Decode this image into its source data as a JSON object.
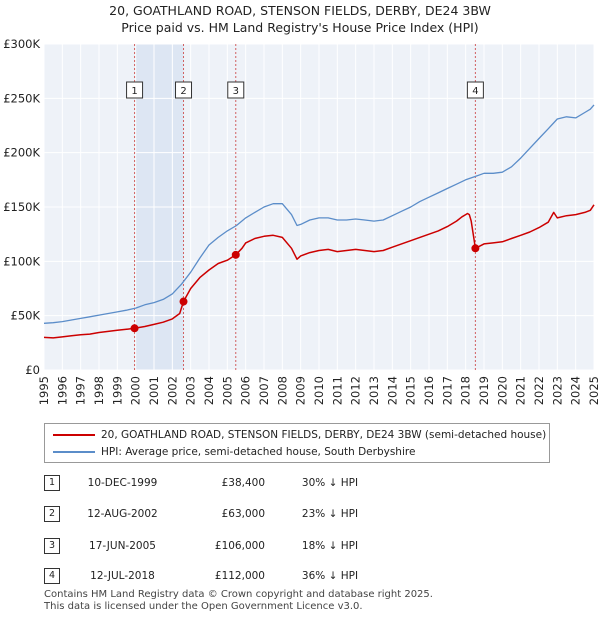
{
  "chart_data": {
    "type": "line",
    "title": "20, GOATHLAND ROAD, STENSON FIELDS, DERBY, DE24 3BW",
    "subtitle": "Price paid vs. HM Land Registry's House Price Index (HPI)",
    "xlabel": "",
    "ylabel": "",
    "xlim": [
      1995,
      2025
    ],
    "ylim": [
      0,
      300000
    ],
    "y_ticks": [
      0,
      50000,
      100000,
      150000,
      200000,
      250000,
      300000
    ],
    "y_tick_labels": [
      "£0",
      "£50K",
      "£100K",
      "£150K",
      "£200K",
      "£250K",
      "£300K"
    ],
    "x_ticks": [
      "1995",
      "1996",
      "1997",
      "1998",
      "1999",
      "2000",
      "2001",
      "2002",
      "2003",
      "2004",
      "2005",
      "2006",
      "2007",
      "2008",
      "2009",
      "2010",
      "2011",
      "2012",
      "2013",
      "2014",
      "2015",
      "2016",
      "2017",
      "2018",
      "2019",
      "2020",
      "2021",
      "2022",
      "2023",
      "2024",
      "2025"
    ],
    "grid": true,
    "series": [
      {
        "name": "20, GOATHLAND ROAD, STENSON FIELDS, DERBY, DE24 3BW (semi-detached house)",
        "color": "#cc0000",
        "x": [
          1995,
          1995.5,
          1996,
          1996.5,
          1997,
          1997.5,
          1998,
          1998.5,
          1999,
          1999.5,
          1999.94,
          2000.5,
          2001,
          2001.5,
          2002,
          2002.4,
          2002.61,
          2003,
          2003.5,
          2004,
          2004.5,
          2005,
          2005.46,
          2005.8,
          2006,
          2006.5,
          2007,
          2007.5,
          2008,
          2008.5,
          2008.8,
          2009,
          2009.5,
          2010,
          2010.5,
          2011,
          2011.5,
          2012,
          2012.5,
          2013,
          2013.5,
          2014,
          2014.5,
          2015,
          2015.5,
          2016,
          2016.5,
          2017,
          2017.5,
          2017.8,
          2018,
          2018.1,
          2018.2,
          2018.3,
          2018.53,
          2019,
          2019.5,
          2020,
          2020.5,
          2021,
          2021.5,
          2022,
          2022.5,
          2022.8,
          2023,
          2023.5,
          2024,
          2024.5,
          2024.8,
          2025
        ],
        "values": [
          30000,
          29500,
          30500,
          31500,
          32500,
          33000,
          34500,
          35500,
          36500,
          37500,
          38400,
          40000,
          42000,
          44000,
          47000,
          52000,
          63000,
          75000,
          85000,
          92000,
          98000,
          101000,
          106000,
          112000,
          117000,
          121000,
          123000,
          124000,
          122000,
          112000,
          102000,
          105000,
          108000,
          110000,
          111000,
          109000,
          110000,
          111000,
          110000,
          109000,
          110000,
          113000,
          116000,
          119000,
          122000,
          125000,
          128000,
          132000,
          137000,
          141000,
          143000,
          144000,
          143000,
          137000,
          112000,
          116000,
          117000,
          118000,
          121000,
          124000,
          127000,
          131000,
          136000,
          145000,
          140000,
          142000,
          143000,
          145000,
          147000,
          152000
        ]
      },
      {
        "name": "HPI: Average price, semi-detached house, South Derbyshire",
        "color": "#5b8dc9",
        "x": [
          1995,
          1995.5,
          1996,
          1996.5,
          1997,
          1997.5,
          1998,
          1998.5,
          1999,
          1999.5,
          2000,
          2000.5,
          2001,
          2001.5,
          2002,
          2002.5,
          2003,
          2003.5,
          2004,
          2004.5,
          2005,
          2005.5,
          2006,
          2006.5,
          2007,
          2007.5,
          2008,
          2008.5,
          2008.8,
          2009,
          2009.5,
          2010,
          2010.5,
          2011,
          2011.5,
          2012,
          2012.5,
          2013,
          2013.5,
          2014,
          2014.5,
          2015,
          2015.5,
          2016,
          2016.5,
          2017,
          2017.5,
          2018,
          2018.5,
          2019,
          2019.5,
          2020,
          2020.5,
          2021,
          2021.5,
          2022,
          2022.5,
          2023,
          2023.5,
          2024,
          2024.5,
          2024.8,
          2025
        ],
        "values": [
          43000,
          43500,
          44500,
          46000,
          47500,
          49000,
          50500,
          52000,
          53500,
          55000,
          57000,
          60000,
          62000,
          65000,
          70000,
          79000,
          90000,
          103000,
          115000,
          122000,
          128000,
          133000,
          140000,
          145000,
          150000,
          153000,
          153000,
          143000,
          133000,
          134000,
          138000,
          140000,
          140000,
          138000,
          138000,
          139000,
          138000,
          137000,
          138000,
          142000,
          146000,
          150000,
          155000,
          159000,
          163000,
          167000,
          171000,
          175000,
          178000,
          181000,
          181000,
          182000,
          187000,
          195000,
          204000,
          213000,
          222000,
          231000,
          233000,
          232000,
          237000,
          240000,
          244000
        ]
      }
    ],
    "sales": [
      {
        "label": "1",
        "year": 1999.94,
        "price": 38400
      },
      {
        "label": "2",
        "year": 2002.61,
        "price": 63000
      },
      {
        "label": "3",
        "year": 2005.46,
        "price": 106000
      },
      {
        "label": "4",
        "year": 2018.53,
        "price": 112000
      }
    ]
  },
  "title": {
    "line1": "20, GOATHLAND ROAD, STENSON FIELDS, DERBY, DE24 3BW",
    "line2": "Price paid vs. HM Land Registry's House Price Index (HPI)"
  },
  "legend": {
    "property_label": "20, GOATHLAND ROAD, STENSON FIELDS, DERBY, DE24 3BW (semi-detached house)",
    "property_color": "#cc0000",
    "hpi_label": "HPI: Average price, semi-detached house, South Derbyshire",
    "hpi_color": "#5b8dc9"
  },
  "transactions": [
    {
      "num": "1",
      "date": "10-DEC-1999",
      "price": "£38,400",
      "diff": "30% ↓ HPI"
    },
    {
      "num": "2",
      "date": "12-AUG-2002",
      "price": "£63,000",
      "diff": "23% ↓ HPI"
    },
    {
      "num": "3",
      "date": "17-JUN-2005",
      "price": "£106,000",
      "diff": "18% ↓ HPI"
    },
    {
      "num": "4",
      "date": "12-JUL-2018",
      "price": "£112,000",
      "diff": "36% ↓ HPI"
    }
  ],
  "footer": {
    "line1": "Contains HM Land Registry data © Crown copyright and database right 2025.",
    "line2": "This data is licensed under the Open Government Licence v3.0."
  }
}
